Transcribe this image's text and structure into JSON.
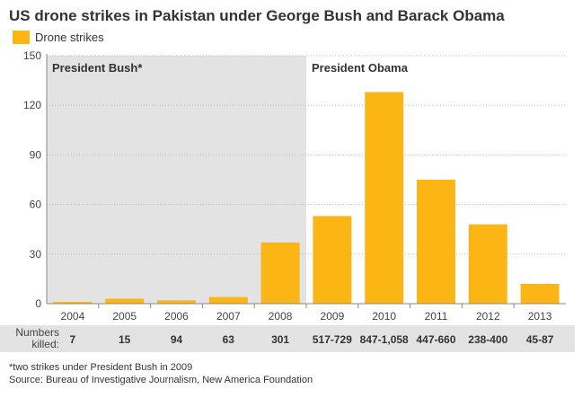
{
  "title": "US drone strikes in Pakistan under George Bush and Barack Obama",
  "legend": {
    "label": "Drone strikes",
    "color": "#fbb615"
  },
  "colors": {
    "bar": "#fbb615",
    "bush_shade": "#e3e3e3",
    "axis": "#888888",
    "grid": "#bbbbbb"
  },
  "chart_data": {
    "type": "bar",
    "categories": [
      "2004",
      "2005",
      "2006",
      "2007",
      "2008",
      "2009",
      "2010",
      "2011",
      "2012",
      "2013"
    ],
    "series": [
      {
        "name": "Drone strikes",
        "values": [
          1,
          3,
          2,
          4,
          37,
          53,
          128,
          75,
          48,
          12
        ]
      }
    ],
    "ylim": [
      0,
      150
    ],
    "yticks": [
      0,
      30,
      60,
      90,
      120,
      150
    ],
    "grid": true,
    "legend_position": "top-left",
    "annotations": [
      {
        "text": "President Bush*",
        "span": [
          "2004",
          "2008"
        ],
        "shaded": true
      },
      {
        "text": "President Obama",
        "span": [
          "2009",
          "2013"
        ],
        "shaded": false
      }
    ]
  },
  "numbers_killed": {
    "label_line1": "Numbers",
    "label_line2": "killed:",
    "values": [
      "7",
      "15",
      "94",
      "63",
      "301",
      "517-729",
      "847-1,058",
      "447-660",
      "238-400",
      "45-87"
    ]
  },
  "footnote": "*two strikes under President Bush in 2009",
  "source": "Source: Bureau of Investigative Journalism, New America Foundation"
}
